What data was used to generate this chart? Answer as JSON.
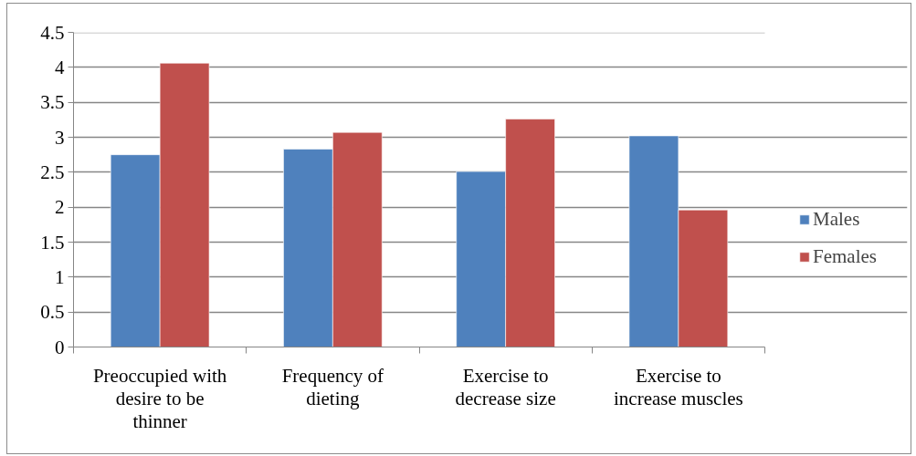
{
  "chart_data": {
    "type": "bar",
    "categories": [
      "Preoccupied with desire to be thinner",
      "Frequency of dieting",
      "Exercise to decrease size",
      "Exercise to increase muscles"
    ],
    "series": [
      {
        "name": "Males",
        "color": "#4f81bd",
        "values": [
          2.75,
          2.83,
          2.51,
          3.02
        ]
      },
      {
        "name": "Females",
        "color": "#c0504d",
        "values": [
          4.06,
          3.07,
          3.26,
          1.96
        ]
      }
    ],
    "ylim": [
      0,
      4.5
    ],
    "yticks": [
      0,
      0.5,
      1,
      1.5,
      2,
      2.5,
      3,
      3.5,
      4,
      4.5
    ],
    "grid": "y",
    "legend": "right"
  }
}
